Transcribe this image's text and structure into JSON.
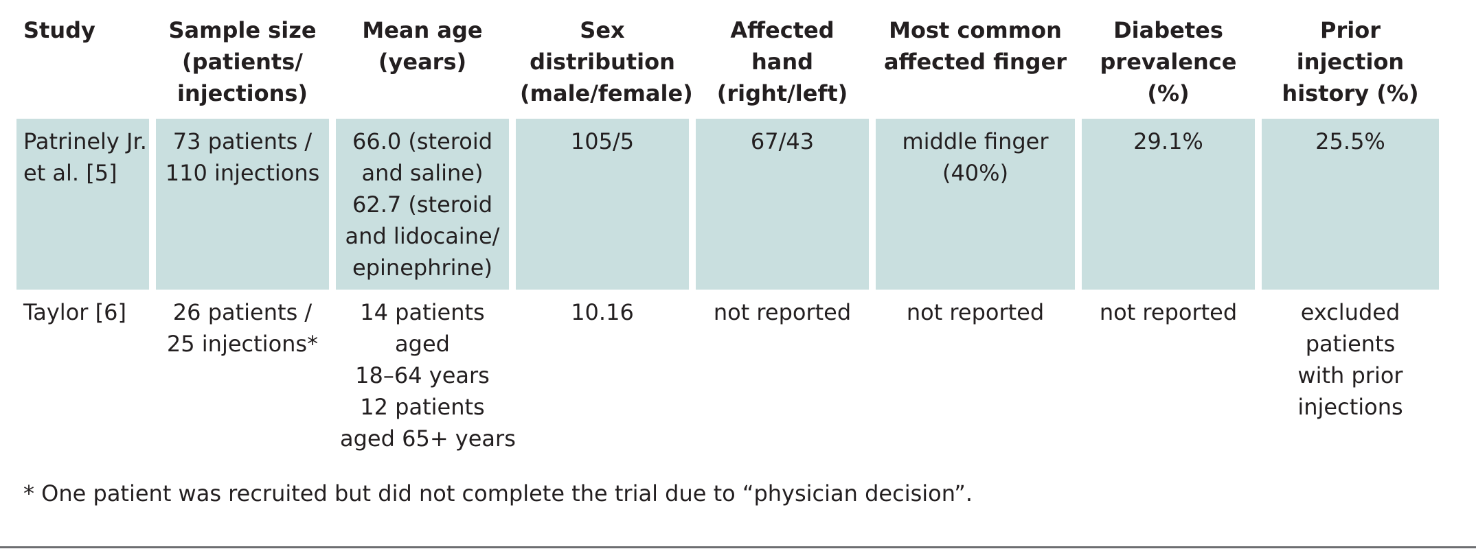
{
  "headers": [
    [
      "Study"
    ],
    [
      "Sample size",
      "(patients/",
      "injections)"
    ],
    [
      "Mean age",
      "(years)"
    ],
    [
      "Sex",
      "distribution",
      "(male/female)"
    ],
    [
      "Affected",
      "hand",
      "(right/left)"
    ],
    [
      "Most common",
      "affected finger"
    ],
    [
      "Diabetes",
      "prevalence",
      "(%)"
    ],
    [
      "Prior",
      "injection",
      "history (%)"
    ]
  ],
  "rows": [
    [
      [
        "Patrinely Jr.",
        "et al. [5]"
      ],
      [
        "73 patients /",
        "110 injections"
      ],
      [
        "66.0 (steroid",
        "and saline)",
        "62.7 (steroid",
        "and lidocaine/",
        "epinephrine)"
      ],
      [
        "105/5"
      ],
      [
        "67/43"
      ],
      [
        "middle finger",
        "(40%)"
      ],
      [
        "29.1%"
      ],
      [
        "25.5%"
      ]
    ],
    [
      [
        "Taylor [6]"
      ],
      [
        "26 patients /",
        "25 injections*"
      ],
      [
        "14 patients",
        "aged",
        "18–64 years",
        "12 patients",
        "aged 65+ years"
      ],
      [
        "10.16"
      ],
      [
        "not reported"
      ],
      [
        "not reported"
      ],
      [
        "not reported"
      ],
      [
        "excluded",
        "patients",
        "with prior",
        "injections"
      ]
    ]
  ],
  "footnote": "* One patient was recruited but did not complete the trial due to “physician decision”.",
  "colors": {
    "row_highlight": "#c9dfdf",
    "text": "#231f20",
    "rule": "#6d6e71"
  }
}
